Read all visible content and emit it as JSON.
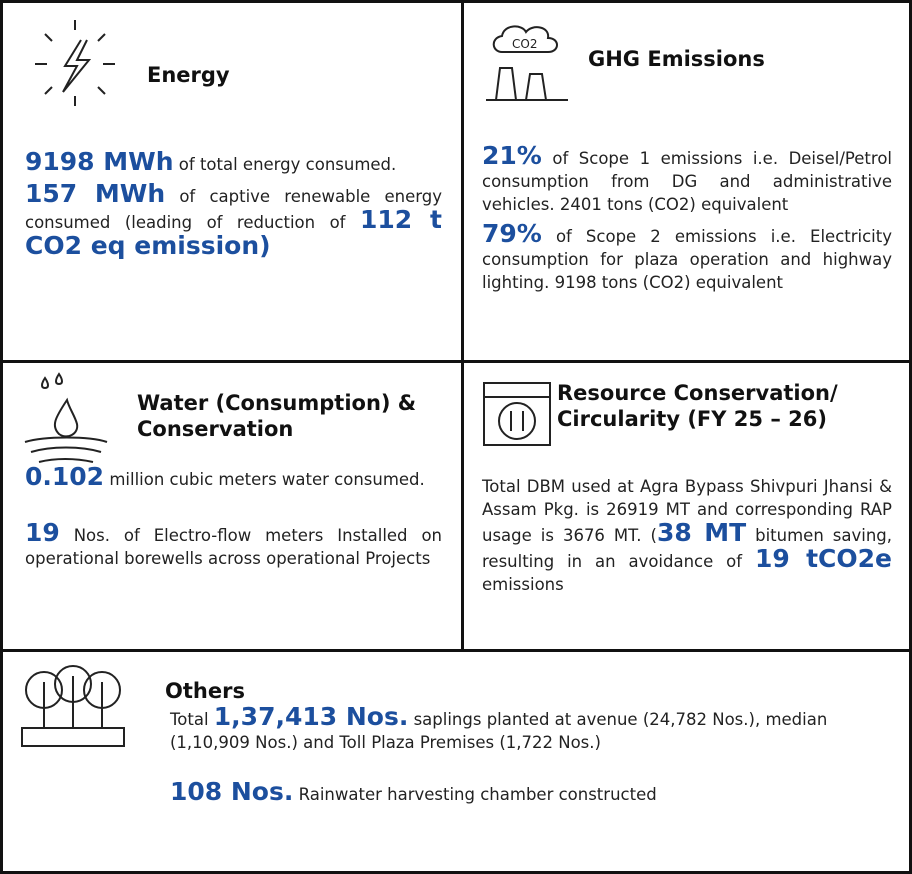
{
  "energy": {
    "title": "Energy",
    "paragraphs": [
      [
        {
          "text": "9198 MWh",
          "highlight": true
        },
        {
          "text": " of total energy consumed."
        }
      ],
      [
        {
          "text": "157 MWh",
          "highlight": true
        },
        {
          "text": " of captive renewable energy consumed (leading of reduction of "
        },
        {
          "text": "112 t CO2 eq emission)",
          "highlight": true
        }
      ]
    ]
  },
  "ghg": {
    "title": "GHG Emissions",
    "icon_label": "CO2",
    "paragraphs": [
      [
        {
          "text": "21%",
          "highlight": true
        },
        {
          "text": " of Scope 1 emissions i.e. Deisel/Petrol consumption from DG and administrative vehicles. 2401 tons (CO2) equivalent"
        }
      ],
      [
        {
          "text": "79%",
          "highlight": true
        },
        {
          "text": " of Scope 2 emissions i.e. Electricity consumption for plaza operation and highway lighting. 9198 tons (CO2) equivalent"
        }
      ]
    ]
  },
  "water": {
    "title": "Water (Consumption) & Conservation",
    "paragraphs": [
      [
        {
          "text": "0.102",
          "highlight": true
        },
        {
          "text": " million cubic meters water consumed."
        }
      ],
      [
        {
          "text": "19",
          "highlight": true
        },
        {
          "text": " Nos. of Electro-flow meters Installed on operational borewells across operational Projects"
        }
      ]
    ]
  },
  "resource": {
    "title": "Resource Conservation/ Circularity (FY 25 – 26)",
    "paragraphs": [
      [
        {
          "text": "Total DBM used at Agra Bypass Shivpuri Jhansi & Assam Pkg. is 26919 MT and corresponding RAP usage is 3676 MT. ("
        },
        {
          "text": "38 MT",
          "highlight": true
        },
        {
          "text": " bitumen saving, resulting in an avoidance of "
        },
        {
          "text": "19 tCO2e",
          "highlight": true
        },
        {
          "text": " emissions"
        }
      ]
    ]
  },
  "others": {
    "title": "Others",
    "paragraphs": [
      [
        {
          "text": "Total "
        },
        {
          "text": "1,37,413 Nos.",
          "highlight": true
        },
        {
          "text": " saplings planted at avenue (24,782 Nos.), median (1,10,909 Nos.) and Toll Plaza Premises (1,722 Nos.)"
        }
      ],
      [
        {
          "text": "108 Nos.",
          "highlight": true
        },
        {
          "text": " Rainwater harvesting chamber constructed"
        }
      ]
    ]
  }
}
